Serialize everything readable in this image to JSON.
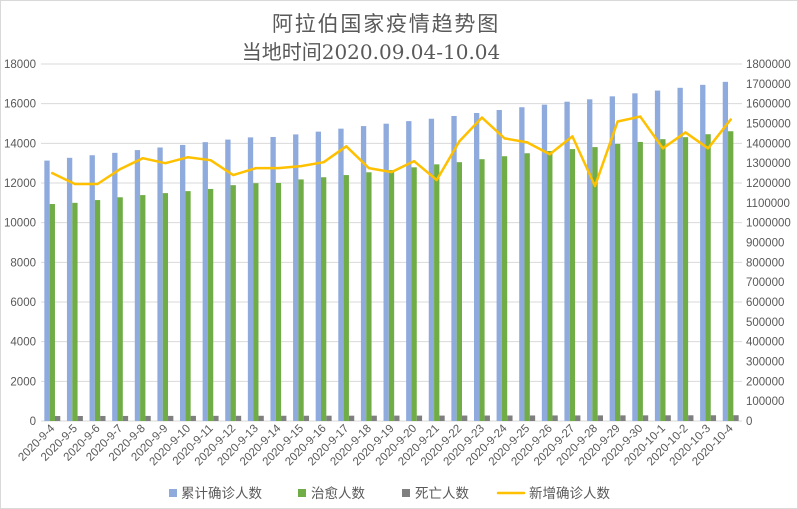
{
  "chart_data": {
    "type": "bar",
    "title": "阿拉伯国家疫情趋势图",
    "subtitle": "当地时间2020.09.04-10.04",
    "categories": [
      "2020-9-4",
      "2020-9-5",
      "2020-9-6",
      "2020-9-7",
      "2020-9-8",
      "2020-9-9",
      "2020-9-10",
      "2020-9-11",
      "2020-9-12",
      "2020-9-13",
      "2020-9-14",
      "2020-9-15",
      "2020-9-16",
      "2020-9-17",
      "2020-9-18",
      "2020-9-19",
      "2020-9-20",
      "2020-9-21",
      "2020-9-22",
      "2020-9-23",
      "2020-9-24",
      "2020-9-25",
      "2020-9-26",
      "2020-9-27",
      "2020-9-28",
      "2020-9-29",
      "2020-9-30",
      "2020-10-1",
      "2020-10-2",
      "2020-10-3",
      "2020-10-4"
    ],
    "y_left_range": [
      0,
      18000
    ],
    "y_left_ticks": [
      "0",
      "2000",
      "4000",
      "6000",
      "8000",
      "10000",
      "12000",
      "14000",
      "16000",
      "18000"
    ],
    "y_right_range": [
      0,
      1800000
    ],
    "y_right_ticks": [
      "0",
      "100000",
      "200000",
      "300000",
      "400000",
      "500000",
      "600000",
      "700000",
      "800000",
      "900000",
      "1000000",
      "1100000",
      "1200000",
      "1300000",
      "1400000",
      "1500000",
      "1600000",
      "1700000",
      "1800000"
    ],
    "grid": true,
    "legend_position": "bottom",
    "series": [
      {
        "name": "累计确诊人数",
        "type": "bar",
        "axis": "right",
        "color": "#8FAADC",
        "values": [
          1313000,
          1327000,
          1340000,
          1352000,
          1366000,
          1379000,
          1392000,
          1406000,
          1419000,
          1430000,
          1432000,
          1445000,
          1459000,
          1474000,
          1487000,
          1499000,
          1512000,
          1524000,
          1538000,
          1553000,
          1568000,
          1582000,
          1595000,
          1610000,
          1622000,
          1637000,
          1652000,
          1666000,
          1680000,
          1695000,
          1710000
        ]
      },
      {
        "name": "治愈人数",
        "type": "bar",
        "axis": "right",
        "color": "#70AD47",
        "values": [
          1094000,
          1100000,
          1114000,
          1128000,
          1139000,
          1149000,
          1159000,
          1170000,
          1189000,
          1199000,
          1200000,
          1218000,
          1229000,
          1240000,
          1254000,
          1265000,
          1279000,
          1294000,
          1305000,
          1320000,
          1335000,
          1350000,
          1361000,
          1371000,
          1381000,
          1397000,
          1407000,
          1421000,
          1431000,
          1446000,
          1461000
        ]
      },
      {
        "name": "死亡人数",
        "type": "bar",
        "axis": "right",
        "color": "#7F7F7F",
        "values": [
          25100,
          25200,
          25400,
          25500,
          25600,
          25800,
          25900,
          26000,
          26200,
          26300,
          26400,
          26500,
          26700,
          26800,
          26900,
          27100,
          27200,
          27300,
          27500,
          27600,
          27700,
          27900,
          28000,
          28100,
          28300,
          28400,
          28500,
          28700,
          28800,
          28900,
          29100
        ]
      },
      {
        "name": "新增确诊人数",
        "type": "line",
        "axis": "left",
        "color": "#FFC000",
        "values": [
          12500,
          11950,
          11950,
          12700,
          13250,
          13000,
          13300,
          13150,
          12400,
          12750,
          12750,
          12850,
          13050,
          13850,
          12750,
          12550,
          13100,
          12150,
          14100,
          15300,
          14250,
          14050,
          13450,
          14350,
          11850,
          15100,
          15350,
          13750,
          14550,
          13750,
          15200
        ]
      }
    ]
  }
}
